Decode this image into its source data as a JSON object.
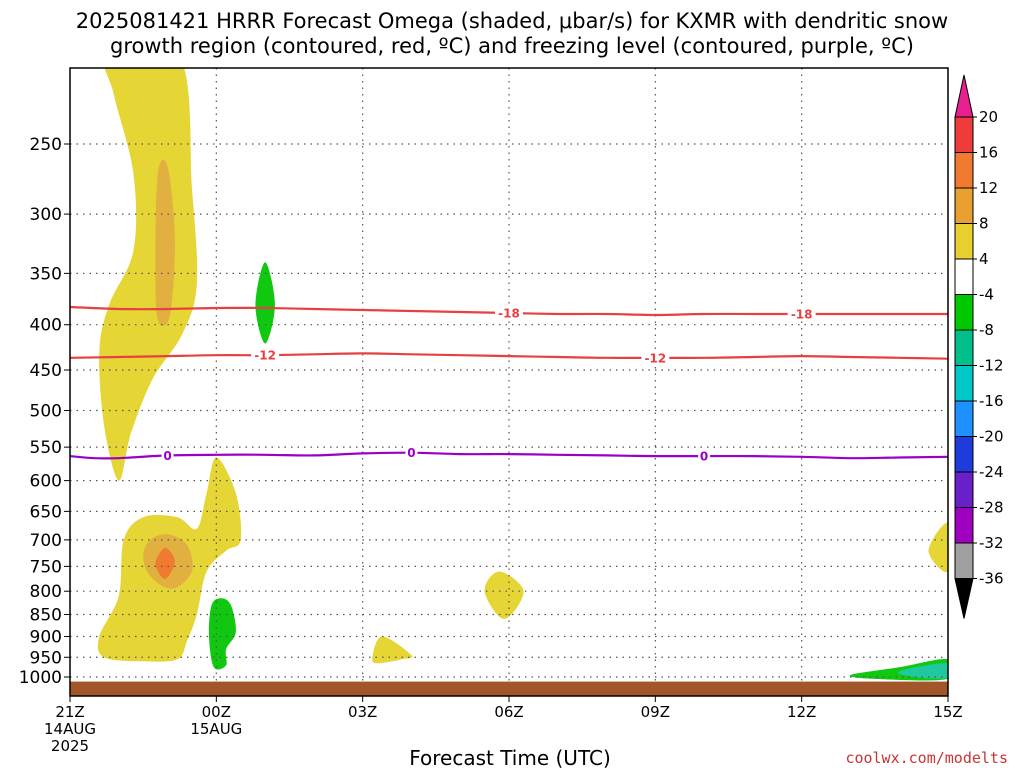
{
  "chart_data": {
    "type": "time-height contour",
    "title_line1": "2025081421 HRRR Forecast Omega (shaded, μbar/s) for KXMR with dendritic snow",
    "title_line2": "growth region (contoured, red, ºC) and freezing level (contoured, purple, ºC)",
    "xlabel": "Forecast Time (UTC)",
    "credit": "coolwx.com/modelts",
    "x_ticks": [
      {
        "hour": 0,
        "label": "21Z",
        "sub1": "14AUG",
        "sub2": "2025"
      },
      {
        "hour": 3,
        "label": "00Z",
        "sub1": "15AUG",
        "sub2": ""
      },
      {
        "hour": 6,
        "label": "03Z",
        "sub1": "",
        "sub2": ""
      },
      {
        "hour": 9,
        "label": "06Z",
        "sub1": "",
        "sub2": ""
      },
      {
        "hour": 12,
        "label": "09Z",
        "sub1": "",
        "sub2": ""
      },
      {
        "hour": 15,
        "label": "12Z",
        "sub1": "",
        "sub2": ""
      },
      {
        "hour": 18,
        "label": "15Z",
        "sub1": "",
        "sub2": ""
      }
    ],
    "xlim": [
      0,
      18
    ],
    "ylim": [
      1050,
      200
    ],
    "y_ticks": [
      250,
      300,
      350,
      400,
      450,
      500,
      550,
      600,
      650,
      700,
      750,
      800,
      850,
      900,
      950,
      1000
    ],
    "grid": true,
    "colorbar": {
      "levels": [
        "20",
        "16",
        "12",
        "8",
        "4",
        "-4",
        "-8",
        "-12",
        "-16",
        "-20",
        "-24",
        "-28",
        "-32",
        "-36"
      ],
      "colors": [
        "#e81f8f",
        "#f03b3b",
        "#f07a30",
        "#e8a030",
        "#e8d030",
        "#ffffff",
        "#00c800",
        "#00c08a",
        "#00c8c8",
        "#1e90ff",
        "#1e3cdc",
        "#6a20c8",
        "#a000c0",
        "#a0a0a0",
        "#000000"
      ]
    },
    "shading": [
      {
        "name": "omega-pos-4",
        "color": "#e5d535",
        "points": [
          [
            0.8,
            200
          ],
          [
            2.25,
            200
          ],
          [
            2.5,
            280
          ],
          [
            2.6,
            360
          ],
          [
            2.3,
            410
          ],
          [
            1.7,
            460
          ],
          [
            1.25,
            530
          ],
          [
            1,
            600
          ],
          [
            0.7,
            520
          ],
          [
            0.6,
            430
          ],
          [
            0.8,
            380
          ],
          [
            1.3,
            330
          ],
          [
            1.3,
            270
          ],
          [
            0.9,
            220
          ]
        ]
      },
      {
        "name": "omega-pos-8",
        "color": "#e1b040",
        "points": [
          [
            1.8,
            270
          ],
          [
            2.0,
            265
          ],
          [
            2.15,
            320
          ],
          [
            2.05,
            390
          ],
          [
            1.8,
            395
          ],
          [
            1.75,
            340
          ]
        ]
      },
      {
        "name": "omega-pos-4",
        "color": "#e5d535",
        "points": [
          [
            3.0,
            565
          ],
          [
            3.4,
            620
          ],
          [
            3.5,
            700
          ],
          [
            3.2,
            720
          ],
          [
            2.8,
            760
          ],
          [
            2.6,
            850
          ],
          [
            2.4,
            910
          ],
          [
            2.2,
            955
          ],
          [
            1.5,
            960
          ],
          [
            0.7,
            950
          ],
          [
            0.6,
            900
          ],
          [
            1.0,
            810
          ],
          [
            1.1,
            700
          ],
          [
            1.5,
            660
          ],
          [
            2.2,
            660
          ],
          [
            2.6,
            680
          ],
          [
            2.8,
            620
          ]
        ]
      },
      {
        "name": "omega-pos-8",
        "color": "#e1b040",
        "points": [
          [
            2.0,
            690
          ],
          [
            2.4,
            710
          ],
          [
            2.5,
            760
          ],
          [
            2.1,
            795
          ],
          [
            1.65,
            770
          ],
          [
            1.5,
            730
          ],
          [
            1.65,
            700
          ]
        ]
      },
      {
        "name": "omega-pos-12",
        "color": "#f07a30",
        "points": [
          [
            1.95,
            715
          ],
          [
            2.15,
            740
          ],
          [
            1.95,
            775
          ],
          [
            1.75,
            745
          ]
        ]
      },
      {
        "name": "omega-pos-4",
        "color": "#e5d535",
        "points": [
          [
            8.8,
            760
          ],
          [
            9.3,
            800
          ],
          [
            8.9,
            860
          ],
          [
            8.5,
            800
          ]
        ]
      },
      {
        "name": "omega-pos-4",
        "color": "#e5d535",
        "points": [
          [
            6.4,
            900
          ],
          [
            7.0,
            945
          ],
          [
            6.8,
            955
          ],
          [
            6.3,
            965
          ],
          [
            6.2,
            950
          ]
        ]
      },
      {
        "name": "omega-pos-4",
        "color": "#e5d535",
        "points": [
          [
            18,
            670
          ],
          [
            17.6,
            720
          ],
          [
            18,
            760
          ]
        ]
      },
      {
        "name": "omega-neg-4",
        "color": "#10c810",
        "points": [
          [
            4.0,
            340
          ],
          [
            4.2,
            380
          ],
          [
            4.0,
            420
          ],
          [
            3.8,
            380
          ]
        ]
      },
      {
        "name": "omega-neg-4",
        "color": "#10c810",
        "points": [
          [
            3.1,
            815
          ],
          [
            3.3,
            830
          ],
          [
            3.4,
            890
          ],
          [
            3.2,
            930
          ],
          [
            3.2,
            970
          ],
          [
            2.95,
            975
          ],
          [
            2.85,
            900
          ],
          [
            2.9,
            830
          ]
        ]
      },
      {
        "name": "omega-neg-4",
        "color": "#10c810",
        "points": [
          [
            18,
            955
          ],
          [
            17,
            975
          ],
          [
            16.0,
            995
          ],
          [
            16.5,
            1005
          ],
          [
            18,
            1005
          ]
        ]
      },
      {
        "name": "omega-neg-8",
        "color": "#20c8a0",
        "points": [
          [
            18,
            965
          ],
          [
            17.0,
            985
          ],
          [
            17.3,
            1000
          ],
          [
            18,
            1002
          ]
        ]
      }
    ],
    "contours": [
      {
        "name": "-18",
        "color": "#e84040",
        "labels": [
          {
            "hour": 9.0,
            "text": "-18"
          },
          {
            "hour": 15.0,
            "text": "-18"
          }
        ],
        "points": [
          [
            0,
            382
          ],
          [
            1,
            384
          ],
          [
            2,
            384
          ],
          [
            3,
            383
          ],
          [
            4,
            383
          ],
          [
            5,
            384
          ],
          [
            6,
            385
          ],
          [
            7,
            386
          ],
          [
            8,
            387
          ],
          [
            9,
            388
          ],
          [
            10,
            389
          ],
          [
            11,
            389
          ],
          [
            12,
            390
          ],
          [
            13,
            389
          ],
          [
            14,
            389
          ],
          [
            15,
            389
          ],
          [
            16,
            389
          ],
          [
            17,
            389
          ],
          [
            18,
            389
          ]
        ]
      },
      {
        "name": "-12",
        "color": "#e84040",
        "labels": [
          {
            "hour": 4.0,
            "text": "-12"
          },
          {
            "hour": 12.0,
            "text": "-12"
          }
        ],
        "points": [
          [
            0,
            436
          ],
          [
            1,
            435
          ],
          [
            2,
            434
          ],
          [
            3,
            433
          ],
          [
            4,
            433
          ],
          [
            5,
            432
          ],
          [
            6,
            431
          ],
          [
            7,
            432
          ],
          [
            8,
            433
          ],
          [
            9,
            434
          ],
          [
            10,
            435
          ],
          [
            11,
            436
          ],
          [
            12,
            436
          ],
          [
            13,
            436
          ],
          [
            14,
            435
          ],
          [
            15,
            434
          ],
          [
            16,
            435
          ],
          [
            17,
            436
          ],
          [
            18,
            437
          ]
        ]
      },
      {
        "name": "0",
        "color": "#9a00c8",
        "labels": [
          {
            "hour": 2.0,
            "text": "0"
          },
          {
            "hour": 7.0,
            "text": "0"
          },
          {
            "hour": 13.0,
            "text": "0"
          }
        ],
        "points": [
          [
            0,
            563
          ],
          [
            0.5,
            566
          ],
          [
            1,
            566
          ],
          [
            2,
            562
          ],
          [
            3,
            561
          ],
          [
            4,
            561
          ],
          [
            5,
            562
          ],
          [
            6,
            559
          ],
          [
            7,
            558
          ],
          [
            8,
            560
          ],
          [
            9,
            560
          ],
          [
            10,
            561
          ],
          [
            11,
            562
          ],
          [
            12,
            563
          ],
          [
            13,
            563
          ],
          [
            14,
            563
          ],
          [
            15,
            564
          ],
          [
            16,
            566
          ],
          [
            17,
            565
          ],
          [
            18,
            564
          ]
        ]
      }
    ],
    "terrain": {
      "color": "#a3562a",
      "top_hpa": 1012
    }
  }
}
